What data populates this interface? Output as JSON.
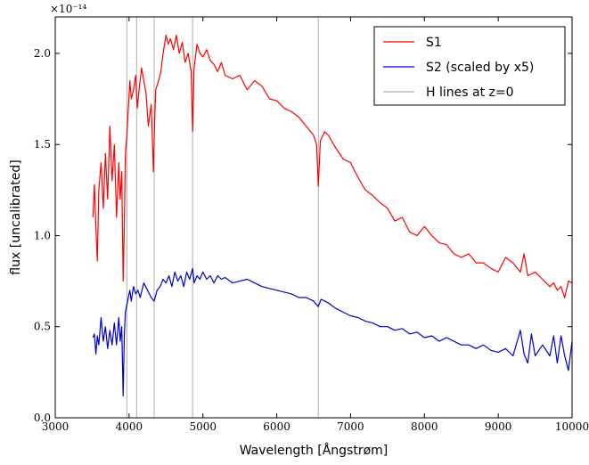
{
  "chart_data": {
    "type": "line",
    "title": "",
    "xlabel": "Wavelength [Ångstrøm]",
    "ylabel": "flux [uncalibrated]",
    "offset_label": "×10⁻¹⁴",
    "xlim": [
      3000,
      10000
    ],
    "ylim": [
      0.0,
      2.2
    ],
    "x_ticks": [
      3000,
      4000,
      5000,
      6000,
      7000,
      8000,
      9000,
      10000
    ],
    "x_tick_labels": [
      "3000",
      "4000",
      "5000",
      "6000",
      "7000",
      "8000",
      "9000",
      "10000"
    ],
    "y_ticks": [
      0.0,
      0.5,
      1.0,
      1.5,
      2.0
    ],
    "y_tick_labels": [
      "0.0",
      "0.5",
      "1.0",
      "1.5",
      "2.0"
    ],
    "grid": false,
    "legend_position": "top-right",
    "h_lines": {
      "name": "H lines at z=0",
      "color": "#b0b0b0",
      "x": [
        3970,
        4102,
        4340,
        4861,
        6563
      ]
    },
    "series": [
      {
        "name": "S1",
        "color": "#ff0000",
        "x": [
          3510,
          3530,
          3550,
          3570,
          3590,
          3620,
          3650,
          3680,
          3710,
          3740,
          3770,
          3800,
          3830,
          3860,
          3880,
          3900,
          3920,
          3935,
          3950,
          3970,
          3990,
          4010,
          4030,
          4060,
          4090,
          4110,
          4140,
          4170,
          4200,
          4230,
          4260,
          4300,
          4330,
          4345,
          4360,
          4400,
          4430,
          4460,
          4500,
          4530,
          4560,
          4600,
          4640,
          4680,
          4720,
          4760,
          4800,
          4840,
          4861,
          4880,
          4920,
          4960,
          5000,
          5050,
          5100,
          5150,
          5200,
          5250,
          5300,
          5400,
          5500,
          5600,
          5700,
          5800,
          5900,
          6000,
          6100,
          6200,
          6300,
          6400,
          6500,
          6540,
          6563,
          6590,
          6650,
          6700,
          6800,
          6900,
          7000,
          7100,
          7200,
          7300,
          7400,
          7500,
          7600,
          7700,
          7800,
          7900,
          8000,
          8100,
          8200,
          8300,
          8400,
          8500,
          8600,
          8700,
          8800,
          8900,
          9000,
          9100,
          9200,
          9300,
          9350,
          9400,
          9500,
          9600,
          9700,
          9750,
          9800,
          9850,
          9900,
          9950,
          10000
        ],
        "values": [
          1.1,
          1.28,
          1.05,
          0.86,
          1.25,
          1.4,
          1.15,
          1.45,
          1.2,
          1.6,
          1.3,
          1.5,
          1.1,
          1.4,
          1.2,
          1.35,
          0.75,
          1.05,
          1.45,
          1.55,
          1.7,
          1.85,
          1.75,
          1.8,
          1.88,
          1.7,
          1.82,
          1.92,
          1.85,
          1.78,
          1.6,
          1.72,
          1.35,
          1.6,
          1.8,
          1.85,
          1.9,
          2.0,
          2.1,
          2.05,
          2.08,
          2.02,
          2.1,
          2.0,
          2.06,
          1.95,
          2.0,
          1.9,
          1.57,
          1.92,
          2.05,
          2.0,
          1.98,
          2.02,
          1.96,
          1.94,
          1.9,
          1.95,
          1.88,
          1.86,
          1.88,
          1.8,
          1.85,
          1.82,
          1.75,
          1.74,
          1.7,
          1.68,
          1.65,
          1.6,
          1.55,
          1.5,
          1.27,
          1.52,
          1.57,
          1.55,
          1.48,
          1.42,
          1.4,
          1.32,
          1.25,
          1.22,
          1.18,
          1.15,
          1.08,
          1.1,
          1.02,
          1.0,
          1.05,
          1.0,
          0.96,
          0.95,
          0.9,
          0.88,
          0.9,
          0.85,
          0.85,
          0.82,
          0.8,
          0.88,
          0.85,
          0.8,
          0.9,
          0.78,
          0.8,
          0.76,
          0.72,
          0.74,
          0.7,
          0.72,
          0.66,
          0.75,
          0.74
        ]
      },
      {
        "name": "S2 (scaled by x5)",
        "color": "#0000cc",
        "x": [
          3510,
          3530,
          3550,
          3570,
          3590,
          3620,
          3650,
          3680,
          3710,
          3740,
          3770,
          3800,
          3830,
          3860,
          3880,
          3900,
          3920,
          3935,
          3950,
          3970,
          3990,
          4010,
          4030,
          4060,
          4090,
          4120,
          4150,
          4200,
          4250,
          4300,
          4340,
          4380,
          4420,
          4460,
          4500,
          4540,
          4580,
          4620,
          4660,
          4700,
          4740,
          4780,
          4820,
          4861,
          4880,
          4920,
          4960,
          5000,
          5050,
          5100,
          5150,
          5200,
          5250,
          5300,
          5400,
          5500,
          5600,
          5700,
          5800,
          5900,
          6000,
          6100,
          6200,
          6300,
          6400,
          6500,
          6563,
          6600,
          6700,
          6800,
          6900,
          7000,
          7100,
          7200,
          7300,
          7400,
          7500,
          7600,
          7700,
          7800,
          7900,
          8000,
          8100,
          8200,
          8300,
          8400,
          8500,
          8600,
          8700,
          8800,
          8900,
          9000,
          9100,
          9200,
          9300,
          9350,
          9400,
          9450,
          9500,
          9600,
          9700,
          9750,
          9800,
          9850,
          9900,
          9950,
          10000
        ],
        "values": [
          0.44,
          0.46,
          0.35,
          0.45,
          0.4,
          0.55,
          0.42,
          0.5,
          0.38,
          0.48,
          0.4,
          0.52,
          0.4,
          0.55,
          0.42,
          0.5,
          0.12,
          0.45,
          0.58,
          0.62,
          0.66,
          0.7,
          0.64,
          0.72,
          0.68,
          0.7,
          0.66,
          0.74,
          0.7,
          0.66,
          0.64,
          0.7,
          0.72,
          0.76,
          0.74,
          0.78,
          0.72,
          0.8,
          0.75,
          0.78,
          0.72,
          0.8,
          0.76,
          0.82,
          0.74,
          0.78,
          0.76,
          0.8,
          0.76,
          0.78,
          0.74,
          0.78,
          0.76,
          0.77,
          0.74,
          0.75,
          0.76,
          0.74,
          0.72,
          0.71,
          0.7,
          0.69,
          0.68,
          0.66,
          0.66,
          0.64,
          0.61,
          0.65,
          0.63,
          0.6,
          0.58,
          0.56,
          0.55,
          0.53,
          0.52,
          0.5,
          0.5,
          0.48,
          0.49,
          0.46,
          0.47,
          0.44,
          0.45,
          0.42,
          0.44,
          0.42,
          0.4,
          0.4,
          0.38,
          0.4,
          0.37,
          0.36,
          0.38,
          0.34,
          0.48,
          0.35,
          0.3,
          0.46,
          0.34,
          0.4,
          0.34,
          0.45,
          0.3,
          0.45,
          0.34,
          0.26,
          0.42
        ]
      }
    ]
  }
}
